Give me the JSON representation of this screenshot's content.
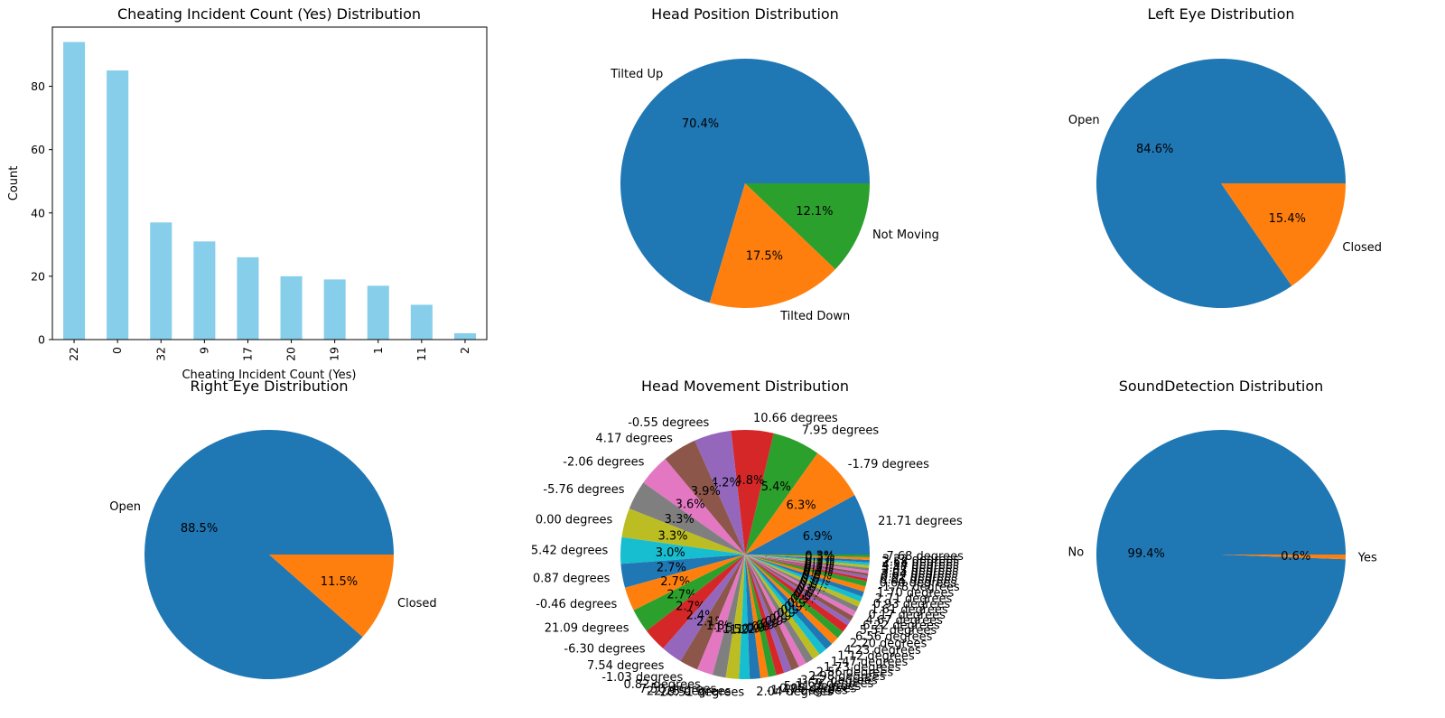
{
  "chart_data": [
    {
      "type": "bar",
      "title": "Cheating Incident Count (Yes) Distribution",
      "xlabel": "Cheating Incident Count (Yes)",
      "ylabel": "Count",
      "categories": [
        "22",
        "0",
        "32",
        "9",
        "17",
        "20",
        "19",
        "1",
        "11",
        "2"
      ],
      "values": [
        94,
        85,
        37,
        31,
        26,
        20,
        19,
        17,
        11,
        2
      ],
      "ylim": [
        0,
        98.7
      ],
      "yticks": [
        0,
        20,
        40,
        60,
        80
      ],
      "color": "#87ceeb",
      "grid": false
    },
    {
      "type": "pie",
      "title": "Head Position Distribution",
      "labels": [
        "Tilted Up",
        "Tilted Down",
        "Not Moving"
      ],
      "percent_labels": [
        "70.4%",
        "17.5%",
        "12.1%"
      ],
      "values": [
        70.4,
        17.5,
        12.1
      ],
      "colors": [
        "#1f77b4",
        "#ff7f0e",
        "#2ca02c"
      ]
    },
    {
      "type": "pie",
      "title": "Left Eye Distribution",
      "labels": [
        "Open",
        "Closed"
      ],
      "percent_labels": [
        "84.6%",
        "15.4%"
      ],
      "values": [
        84.6,
        15.4
      ],
      "colors": [
        "#1f77b4",
        "#ff7f0e"
      ]
    },
    {
      "type": "pie",
      "title": "Right Eye Distribution",
      "labels": [
        "Open",
        "Closed"
      ],
      "percent_labels": [
        "88.5%",
        "11.5%"
      ],
      "values": [
        88.5,
        11.5
      ],
      "colors": [
        "#1f77b4",
        "#ff7f0e"
      ]
    },
    {
      "type": "pie",
      "title": "Head Movement Distribution",
      "labels": [
        "21.71 degrees",
        "-1.79 degrees",
        "7.95 degrees",
        "10.66 degrees",
        "-0.55 degrees",
        "4.17 degrees",
        "-2.06 degrees",
        "-5.76 degrees",
        "0.00 degrees",
        "5.42 degrees",
        "0.87 degrees",
        "-0.46 degrees",
        "21.09 degrees",
        "-6.30 degrees",
        "7.54 degrees",
        "-1.03 degrees",
        "0.82 degrees",
        "7.50 degrees",
        "22.25 degrees",
        "20.51 degrees",
        "2.04 degrees",
        "-1.47 degrees",
        "-0.98 degrees",
        "5.11 degrees",
        "-1.69 degrees",
        "3.52 degrees",
        "2.98 degrees",
        "2.56 degrees",
        "1.73 degrees",
        "1.47 degrees",
        "1.12 degrees",
        "4.23 degrees",
        "2.20 degrees",
        "6.56 degrees",
        "5.51 degrees",
        "6.22 degrees",
        "4.67 degrees",
        "0.17 degrees",
        "1.61 degrees",
        "0.93 degrees",
        "2.71 degrees",
        "1.70 degrees",
        "-1.78 degrees",
        "0.60 degrees",
        "0.61 degrees",
        "0.92 degrees",
        "3.64 degrees",
        "3.05 degrees",
        "3.47 degrees",
        "4.54 degrees",
        "2.58 degrees",
        "3.22 degrees",
        "-7.68 degrees"
      ],
      "percent_labels": [
        "6.9%",
        "6.3%",
        "5.4%",
        "4.8%",
        "4.2%",
        "3.9%",
        "3.6%",
        "3.3%",
        "3.3%",
        "3.0%",
        "2.7%",
        "2.7%",
        "2.7%",
        "2.7%",
        "2.4%",
        "2.1%",
        "1.8%",
        "1.5%",
        "1.5%",
        "1.2%",
        "1.2%",
        "0.9%",
        "0.9%",
        "0.9%",
        "0.9%",
        "0.9%",
        "0.9%",
        "0.9%",
        "0.9%",
        "0.9%",
        "0.9%",
        "0.9%",
        "0.9%",
        "0.9%",
        "0.6%",
        "0.6%",
        "0.6%",
        "0.6%",
        "0.6%",
        "0.6%",
        "0.6%",
        "0.6%",
        "0.6%",
        "0.3%",
        "0.3%",
        "0.3%",
        "0.3%",
        "0.3%",
        "0.3%",
        "0.3%",
        "0.3%",
        "0.3%",
        "0.3%"
      ],
      "values": [
        6.9,
        6.3,
        5.4,
        4.8,
        4.2,
        3.9,
        3.6,
        3.3,
        3.3,
        3.0,
        2.7,
        2.7,
        2.7,
        2.7,
        2.4,
        2.1,
        1.8,
        1.5,
        1.5,
        1.2,
        1.2,
        0.9,
        0.9,
        0.9,
        0.9,
        0.9,
        0.9,
        0.9,
        0.9,
        0.9,
        0.9,
        0.9,
        0.9,
        0.9,
        0.6,
        0.6,
        0.6,
        0.6,
        0.6,
        0.6,
        0.6,
        0.6,
        0.6,
        0.3,
        0.3,
        0.3,
        0.3,
        0.3,
        0.3,
        0.3,
        0.3,
        0.3,
        0.3
      ],
      "colors": [
        "#1f77b4",
        "#ff7f0e",
        "#2ca02c",
        "#d62728",
        "#9467bd",
        "#8c564b",
        "#e377c2",
        "#7f7f7f",
        "#bcbd22",
        "#17becf"
      ]
    },
    {
      "type": "pie",
      "title": "SoundDetection Distribution",
      "labels": [
        "No",
        "Yes"
      ],
      "percent_labels": [
        "99.4%",
        "0.6%"
      ],
      "values": [
        99.4,
        0.6
      ],
      "colors": [
        "#1f77b4",
        "#ff7f0e"
      ]
    }
  ]
}
